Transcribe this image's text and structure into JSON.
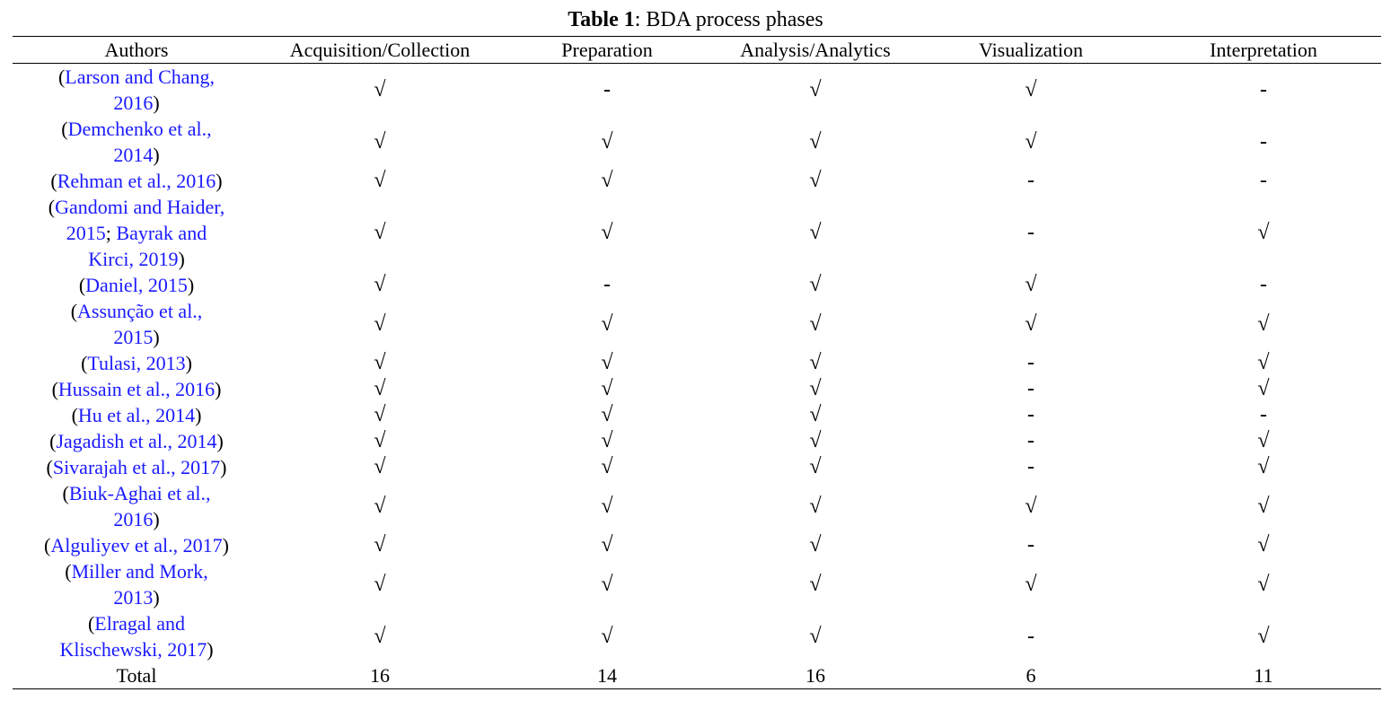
{
  "title": [
    "Table 1",
    ": BDA process phases"
  ],
  "table": {
    "header": [
      "Authors",
      "Acquisition/Collection",
      "Preparation",
      "Analysis/Analytics",
      "Visualization",
      "Interpretation"
    ],
    "rows": [
      {
        "authors": [
          [
            "(",
            "Larson and Chang,"
          ],
          [
            "2016",
            ")"
          ]
        ],
        "marks": [
          "√",
          "-",
          "√",
          "√",
          "-"
        ]
      },
      {
        "authors": [
          [
            "(",
            "Demchenko et al.,"
          ],
          [
            "2014",
            ")"
          ]
        ],
        "marks": [
          "√",
          "√",
          "√",
          "√",
          "-"
        ]
      },
      {
        "authors": [
          [
            "(",
            "Rehman et al., 2016",
            ")"
          ]
        ],
        "marks": [
          "√",
          "√",
          "√",
          "-",
          "-"
        ]
      },
      {
        "authors": [
          [
            "(",
            "Gandomi and Haider,"
          ],
          [
            "2015",
            "; ",
            "Bayrak and"
          ],
          [
            "Kirci, 2019",
            ")"
          ]
        ],
        "marks": [
          "√",
          "√",
          "√",
          "-",
          "√"
        ]
      },
      {
        "authors": [
          [
            "(",
            "Daniel, 2015",
            ")"
          ]
        ],
        "marks": [
          "√",
          "-",
          "√",
          "√",
          "-"
        ]
      },
      {
        "authors": [
          [
            "(",
            "Assunção et al.,"
          ],
          [
            "2015",
            ")"
          ]
        ],
        "marks": [
          "√",
          "√",
          "√",
          "√",
          "√"
        ]
      },
      {
        "authors": [
          [
            "(",
            "Tulasi, 2013",
            ")"
          ]
        ],
        "marks": [
          "√",
          "√",
          "√",
          "-",
          "√"
        ]
      },
      {
        "authors": [
          [
            "(",
            "Hussain et al., 2016",
            ")"
          ]
        ],
        "marks": [
          "√",
          "√",
          "√",
          "-",
          "√"
        ]
      },
      {
        "authors": [
          [
            "(",
            "Hu et al., 2014",
            ")"
          ]
        ],
        "marks": [
          "√",
          "√",
          "√",
          "-",
          "-"
        ]
      },
      {
        "authors": [
          [
            "(",
            "Jagadish et al., 2014",
            ")"
          ]
        ],
        "marks": [
          "√",
          "√",
          "√",
          "-",
          "√"
        ]
      },
      {
        "authors": [
          [
            "(",
            "Sivarajah et al., 2017",
            ")"
          ]
        ],
        "marks": [
          "√",
          "√",
          "√",
          "-",
          "√"
        ]
      },
      {
        "authors": [
          [
            "(",
            "Biuk-Aghai et al.,"
          ],
          [
            "2016",
            ")"
          ]
        ],
        "marks": [
          "√",
          "√",
          "√",
          "√",
          "√"
        ]
      },
      {
        "authors": [
          [
            "(",
            "Alguliyev et al., 2017",
            ")"
          ]
        ],
        "marks": [
          "√",
          "√",
          "√",
          "-",
          "√"
        ]
      },
      {
        "authors": [
          [
            "(",
            "Miller and Mork,"
          ],
          [
            "2013",
            ")"
          ]
        ],
        "marks": [
          "√",
          "√",
          "√",
          "√",
          "√"
        ]
      },
      {
        "authors": [
          [
            "(",
            "Elragal and"
          ],
          [
            "Klischewski, 2017",
            ")"
          ]
        ],
        "marks": [
          "√",
          "√",
          "√",
          "-",
          "√"
        ]
      }
    ],
    "total": {
      "label": "Total",
      "values": [
        16,
        14,
        16,
        6,
        11
      ]
    }
  }
}
